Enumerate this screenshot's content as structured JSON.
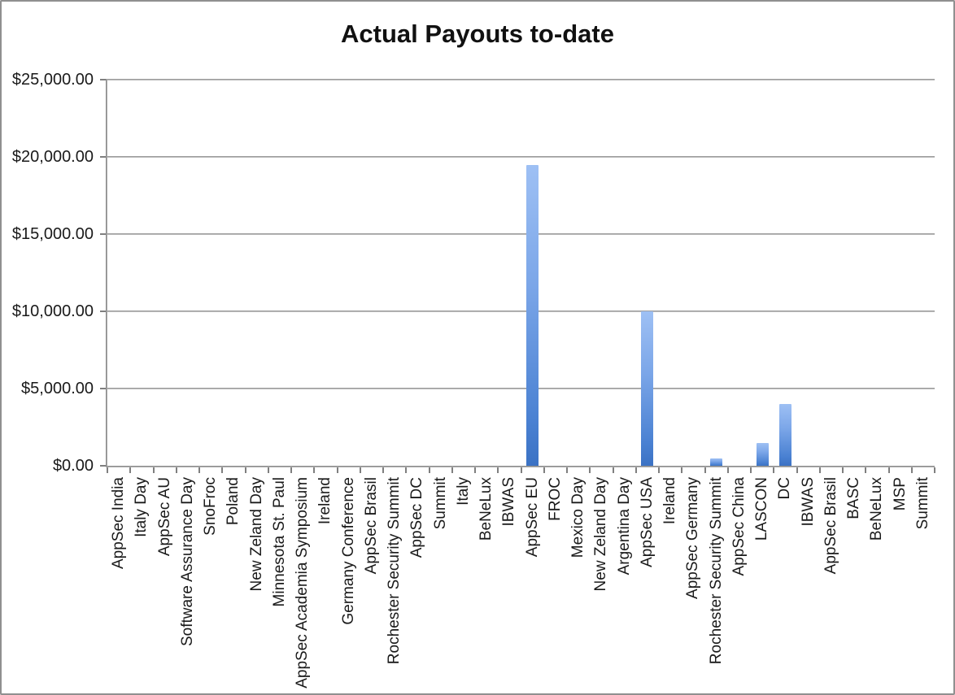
{
  "chart_data": {
    "type": "bar",
    "title": "Actual Payouts to-date",
    "categories": [
      "AppSec India",
      "Italy Day",
      "AppSec AU",
      "Software Assurance Day",
      "SnoFroc",
      "Poland",
      "New Zeland Day",
      "Minnesota St. Paul",
      "AppSec Academia Symposium",
      "Ireland",
      "Germany Conference",
      "AppSec Brasil",
      "Rochester Security Summit",
      "AppSec DC",
      "Summit",
      "Italy",
      "BeNeLux",
      "IBWAS",
      "AppSec EU",
      "FROC",
      "Mexico Day",
      "New Zeland Day",
      "Argentina Day",
      "AppSec USA",
      "Ireland",
      "AppSec Germany",
      "Rochester Security Summit",
      "AppSec China",
      "LASCON",
      "DC",
      "IBWAS",
      "AppSec Brasil",
      "BASC",
      "BeNeLux",
      "MSP",
      "Summit"
    ],
    "values": [
      0,
      0,
      0,
      0,
      0,
      0,
      0,
      0,
      0,
      0,
      0,
      0,
      0,
      0,
      0,
      0,
      0,
      0,
      19500,
      0,
      0,
      0,
      0,
      10000,
      0,
      0,
      500,
      0,
      1500,
      4000,
      0,
      0,
      0,
      0,
      0,
      0
    ],
    "xlabel": "",
    "ylabel": "",
    "ylim": [
      0,
      25000
    ],
    "y_step": 5000,
    "y_tick_labels": [
      "$0.00",
      "$5,000.00",
      "$10,000.00",
      "$15,000.00",
      "$20,000.00",
      "$25,000.00"
    ],
    "grid": "on",
    "legend": "none",
    "colors": {
      "bar_top": "#9ec0f4",
      "bar_bottom": "#3b72c4",
      "gridline": "#8e8e8e",
      "axis": "#7f7f7f",
      "text": "#1a1a1a",
      "background": "#ffffff",
      "border": "#8f8f8f"
    }
  }
}
